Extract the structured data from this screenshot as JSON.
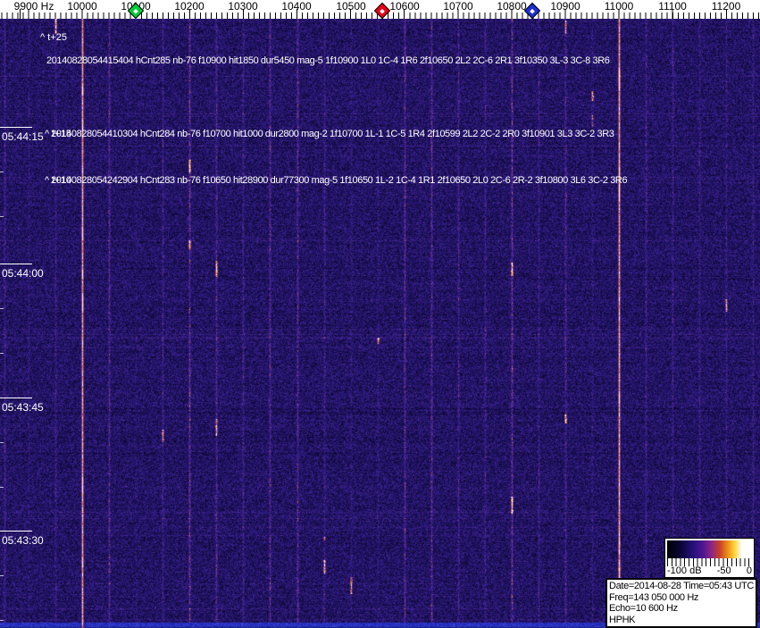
{
  "frequency_axis": {
    "tick_labels": [
      "9900 Hz",
      "10000",
      "10100",
      "10200",
      "10300",
      "10400",
      "10500",
      "10600",
      "10700",
      "10800",
      "10900",
      "11000",
      "11100",
      "11200"
    ],
    "markers": [
      {
        "name": "green",
        "color": "#00cc3a"
      },
      {
        "name": "red",
        "color": "#e80016"
      },
      {
        "name": "blue",
        "color": "#1d2ed6"
      }
    ]
  },
  "time_axis": {
    "labels": [
      "05:44:15",
      "05:44:00",
      "05:43:45",
      "05:43:30"
    ]
  },
  "annotations": [
    {
      "marker": "^ t+25",
      "text": "20140828054415404 hCnt285 nb-76 f10900 hit1850 dur5450 mag-5 1f10900 1L0 1C-4 1R6 2f10650 2L2 2C-6 2R1 3f10350 3L-3 3C-8 3R6"
    },
    {
      "marker": "^ t+15",
      "text": "20140828054410304 hCnt284 nb-76 f10700 hit1000 dur2800 mag-2 1f10700 1L-1 1C-5 1R4 2f10599 2L2 2C-2 2R0 3f10901 3L3 3C-2 3R3"
    },
    {
      "marker": "^ t+10",
      "text": "20140828054242904 hCnt283 nb-76 f10650 hit28900 dur77300 mag-5 1f10650 1L-2 1C-4 1R1 2f10650 2L0 2C-6 2R-2 3f10800 3L6 3C-2 3R6"
    }
  ],
  "legend": {
    "labels": [
      "-100 dB",
      "-50",
      "0"
    ]
  },
  "info_box": {
    "lines": [
      "Date=2014-08-28 Time=05:43 UTC",
      "Freq=143 050 000 Hz",
      "Echo=10 600 Hz",
      "HPHK"
    ]
  },
  "colors": {
    "axis_background": "#ffffff",
    "waterfall_background": "#27156e",
    "carrier_orange": "#e07820",
    "echo_stripe_purple": "#8a3a96",
    "bottom_strip_blue": "#2832c0",
    "overlay_text": "#ffffff"
  }
}
